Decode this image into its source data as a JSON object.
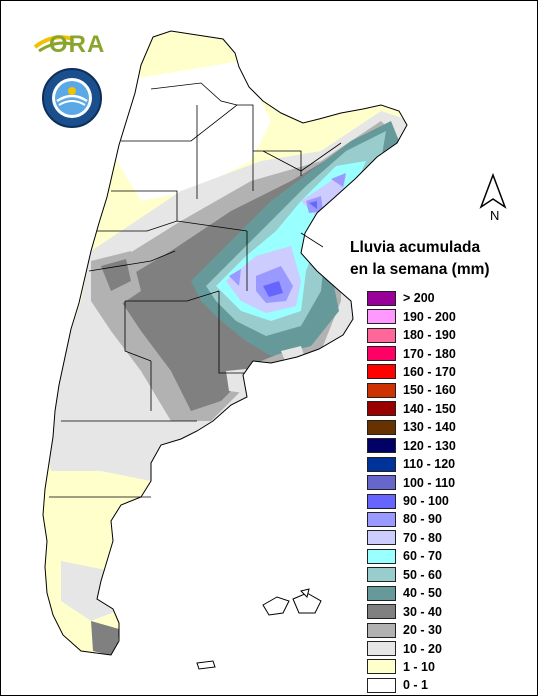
{
  "logos": {
    "ora": "ORA",
    "smn_seal": "SERVICIO METEOROLOGICO NACIONAL ARGENTINA"
  },
  "north_arrow": {
    "label": "N"
  },
  "legend": {
    "title_line1": "Lluvia acumulada",
    "title_line2": "en la semana (mm)",
    "items": [
      {
        "label": "> 200",
        "color": "#990099"
      },
      {
        "label": "190 - 200",
        "color": "#ff99ff"
      },
      {
        "label": "180 - 190",
        "color": "#ff6699"
      },
      {
        "label": "170 - 180",
        "color": "#ff0066"
      },
      {
        "label": "160 - 170",
        "color": "#ff0000"
      },
      {
        "label": "150 - 160",
        "color": "#cc3300"
      },
      {
        "label": "140 - 150",
        "color": "#990000"
      },
      {
        "label": "130 - 140",
        "color": "#663300"
      },
      {
        "label": "120 - 130",
        "color": "#000066"
      },
      {
        "label": "110 - 120",
        "color": "#003399"
      },
      {
        "label": "100 - 110",
        "color": "#6666cc"
      },
      {
        "label": "90 - 100",
        "color": "#6666ff"
      },
      {
        "label": "80 - 90",
        "color": "#9999ff"
      },
      {
        "label": "70 - 80",
        "color": "#ccccff"
      },
      {
        "label": "60 - 70",
        "color": "#99ffff"
      },
      {
        "label": "50 - 60",
        "color": "#99cccc"
      },
      {
        "label": "40 - 50",
        "color": "#669999"
      },
      {
        "label": "30 - 40",
        "color": "#808080"
      },
      {
        "label": "20 - 30",
        "color": "#b2b2b2"
      },
      {
        "label": "10 - 20",
        "color": "#e6e6e6"
      },
      {
        "label": "1 - 10",
        "color": "#ffffcc"
      },
      {
        "label": "0 - 1",
        "color": "#ffffff"
      }
    ]
  }
}
